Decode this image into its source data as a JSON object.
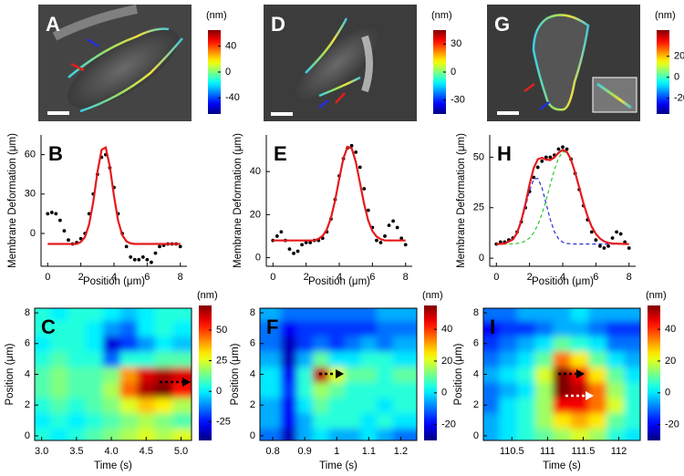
{
  "chart_data": [
    {
      "type": "image",
      "label": "A",
      "colorbar_label": "(nm)",
      "clim": [
        -65,
        65
      ],
      "cticks": [
        -40,
        0,
        40
      ]
    },
    {
      "type": "image",
      "label": "D",
      "colorbar_label": "(nm)",
      "clim": [
        -45,
        45
      ],
      "cticks": [
        -30,
        0,
        30
      ]
    },
    {
      "type": "image",
      "label": "G",
      "colorbar_label": "(nm)",
      "clim": [
        -35,
        45
      ],
      "cticks": [
        -20,
        0,
        20
      ]
    },
    {
      "type": "scatter",
      "label": "B",
      "xlabel": "Position (μm)",
      "ylabel": "Membrane Deformation (μm)",
      "xlim": [
        -0.4,
        8.4
      ],
      "xticks": [
        0,
        2,
        4,
        6,
        8
      ],
      "ylim": [
        -25,
        75
      ],
      "yticks": [
        0,
        30,
        60
      ],
      "series": [
        {
          "style": "markers",
          "color": "#000000",
          "x": [
            0,
            0.25,
            0.5,
            0.75,
            1,
            1.25,
            1.5,
            1.75,
            2,
            2.25,
            2.5,
            2.75,
            3,
            3.25,
            3.5,
            3.75,
            4,
            4.25,
            4.5,
            4.75,
            5,
            5.25,
            5.5,
            5.75,
            6,
            6.25,
            6.5,
            6.75,
            7,
            7.25,
            7.5,
            7.75,
            8
          ],
          "values": [
            15,
            16,
            15,
            10,
            2,
            -5,
            -8,
            -7,
            -4,
            0,
            15,
            30,
            45,
            58,
            60,
            50,
            35,
            15,
            0,
            -10,
            -18,
            -20,
            -20,
            -18,
            -20,
            -22,
            -15,
            -10,
            -9,
            -8,
            -8,
            -8,
            -10
          ]
        },
        {
          "style": "line",
          "color": "#e41a1c",
          "x": [
            0,
            0.25,
            0.5,
            0.75,
            1,
            1.25,
            1.5,
            1.75,
            2,
            2.25,
            2.5,
            2.75,
            3,
            3.25,
            3.5,
            3.75,
            4,
            4.25,
            4.5,
            4.75,
            5,
            5.25,
            5.5,
            5.75,
            6,
            6.25,
            6.5,
            6.75,
            7,
            7.25,
            7.5,
            7.75,
            8
          ],
          "values": [
            -8,
            -8,
            -8,
            -8,
            -8,
            -8,
            -8,
            -8,
            -6.5,
            -2.7,
            6.9,
            24.2,
            46.5,
            63.7,
            65.5,
            50.7,
            28.5,
            9.7,
            -1.3,
            -6,
            -7.6,
            -8,
            -8,
            -8,
            -8,
            -8,
            -8,
            -8,
            -8,
            -8,
            -8,
            -8,
            -8
          ]
        }
      ]
    },
    {
      "type": "scatter",
      "label": "E",
      "xlabel": "Position (μm)",
      "ylabel": "Membrane Deformation (μm)",
      "xlim": [
        -0.4,
        8.4
      ],
      "xticks": [
        0,
        2,
        4,
        6,
        8
      ],
      "ylim": [
        -4,
        57
      ],
      "yticks": [
        0,
        20,
        40
      ],
      "series": [
        {
          "style": "markers",
          "color": "#000000",
          "x": [
            0,
            0.25,
            0.5,
            0.75,
            1,
            1.25,
            1.5,
            1.75,
            2,
            2.25,
            2.5,
            2.75,
            3,
            3.25,
            3.5,
            3.75,
            4,
            4.25,
            4.5,
            4.75,
            5,
            5.25,
            5.5,
            5.75,
            6,
            6.25,
            6.5,
            6.75,
            7,
            7.25,
            7.5,
            7.75,
            8
          ],
          "values": [
            8,
            10,
            12,
            8,
            4,
            2,
            3,
            6,
            7,
            7,
            8,
            8,
            9,
            12,
            18,
            27,
            38,
            46,
            51,
            52,
            49,
            42,
            32,
            22,
            14,
            8,
            7,
            10,
            15,
            17,
            14,
            9,
            6
          ]
        },
        {
          "style": "line",
          "color": "#e41a1c",
          "x": [
            0,
            0.25,
            0.5,
            0.75,
            1,
            1.25,
            1.5,
            1.75,
            2,
            2.25,
            2.5,
            2.75,
            3,
            3.25,
            3.5,
            3.75,
            4,
            4.25,
            4.5,
            4.75,
            5,
            5.25,
            5.5,
            5.75,
            6,
            6.25,
            6.5,
            6.75,
            7,
            7.25,
            7.5,
            7.75,
            8
          ],
          "values": [
            8,
            8,
            8,
            8,
            8,
            8,
            8,
            8,
            8,
            8,
            8,
            8.8,
            10.1,
            13.1,
            18.5,
            26.7,
            36.7,
            46.1,
            51.5,
            50.8,
            44.4,
            34.7,
            24.9,
            17.2,
            12.3,
            9.8,
            8.6,
            8,
            8,
            8,
            8,
            8,
            8
          ]
        }
      ]
    },
    {
      "type": "scatter",
      "label": "H",
      "xlabel": "Position (μm)",
      "ylabel": "Membrane Deformation (μm)",
      "xlim": [
        -0.4,
        8.4
      ],
      "xticks": [
        0,
        2,
        4,
        6,
        8
      ],
      "ylim": [
        -4,
        61
      ],
      "yticks": [
        0,
        25,
        50
      ],
      "series": [
        {
          "style": "markers",
          "color": "#000000",
          "x": [
            0,
            0.25,
            0.5,
            0.75,
            1,
            1.25,
            1.5,
            1.75,
            2,
            2.25,
            2.5,
            2.75,
            3,
            3.25,
            3.5,
            3.75,
            4,
            4.25,
            4.5,
            4.75,
            5,
            5.25,
            5.5,
            5.75,
            6,
            6.25,
            6.5,
            6.75,
            7,
            7.25,
            7.5,
            7.75,
            8
          ],
          "values": [
            7,
            8,
            8,
            9,
            10,
            13,
            18,
            25,
            33,
            40,
            45,
            48,
            50,
            50,
            51,
            54,
            55,
            54,
            49,
            42,
            34,
            26,
            19,
            13,
            9,
            6,
            5,
            6,
            10,
            13,
            12,
            8,
            5
          ]
        },
        {
          "style": "dashed",
          "color": "#2a2ad8",
          "x": [
            0,
            0.5,
            1,
            1.25,
            1.5,
            1.75,
            2,
            2.25,
            2.5,
            2.75,
            3,
            3.25,
            3.5,
            3.75,
            4,
            4.25,
            4.5,
            4.75,
            5,
            5.25,
            5.5,
            5.75,
            6,
            6.25,
            6.5,
            6.75,
            7,
            7.5,
            8
          ],
          "values": [
            7,
            7.2,
            9.2,
            12.2,
            17.7,
            25.3,
            33.4,
            39,
            39.5,
            34.8,
            27,
            19.1,
            13.1,
            9.6,
            7.9,
            7.3,
            7.1,
            7,
            7,
            7,
            7,
            7,
            7,
            7,
            7,
            7,
            7,
            7,
            7
          ]
        },
        {
          "style": "dashed",
          "color": "#2ec82e",
          "x": [
            0,
            0.5,
            1,
            1.25,
            1.5,
            1.75,
            2,
            2.25,
            2.5,
            2.75,
            3,
            3.25,
            3.5,
            3.75,
            4,
            4.25,
            4.5,
            4.75,
            5,
            5.25,
            5.5,
            5.75,
            6,
            6.25,
            6.5,
            6.75,
            7,
            7.5,
            8
          ],
          "values": [
            7,
            7,
            7.1,
            7.3,
            7.7,
            8.5,
            10,
            12.6,
            16.5,
            21.9,
            28.8,
            36.5,
            43.8,
            49.6,
            52.7,
            52.4,
            48.7,
            42.4,
            34.9,
            27.3,
            20.7,
            15.6,
            12,
            9.7,
            8.3,
            7.6,
            7.3,
            7.1,
            7
          ]
        },
        {
          "style": "line",
          "color": "#e41a1c",
          "x": [
            0,
            0.5,
            1,
            1.25,
            1.5,
            1.75,
            2,
            2.25,
            2.5,
            2.75,
            3,
            3.25,
            3.5,
            3.75,
            4,
            4.25,
            4.5,
            4.75,
            5,
            5.25,
            5.5,
            5.75,
            6,
            6.25,
            6.5,
            6.75,
            7,
            7.5,
            8
          ],
          "values": [
            7,
            7.2,
            9.3,
            12.5,
            18.4,
            26.8,
            36.4,
            44.6,
            49,
            49.7,
            48.8,
            48.6,
            49.9,
            52.2,
            53.6,
            52.7,
            48.8,
            42.4,
            34.9,
            27.3,
            20.7,
            15.6,
            12,
            9.7,
            8.3,
            7.6,
            7.3,
            7.1,
            7
          ]
        }
      ]
    },
    {
      "type": "heatmap",
      "label": "C",
      "xlabel": "Time (s)",
      "ylabel": "Position (μm)",
      "colorbar_label": "(nm)",
      "xlim": [
        2.9,
        5.15
      ],
      "xticks": [
        {
          "value": 3.0,
          "label": "3.0"
        },
        3.5,
        {
          "value": 4.0,
          "label": "4.0"
        },
        4.5,
        {
          "value": 5.0,
          "label": "5.0"
        }
      ],
      "ylim": [
        -0.3,
        8.3
      ],
      "yticks": [
        0,
        2,
        4,
        6,
        8
      ],
      "clim": [
        -40,
        70
      ],
      "cticks": [
        -25,
        0,
        25,
        50
      ],
      "x": [
        3.0,
        3.25,
        3.5,
        3.75,
        4.0,
        4.25,
        4.5,
        4.75,
        5.0
      ],
      "y": [
        0,
        1,
        2,
        3,
        4,
        5,
        6,
        7,
        8
      ],
      "z": [
        [
          5,
          0,
          5,
          10,
          15,
          20,
          25,
          20,
          25
        ],
        [
          0,
          5,
          0,
          5,
          10,
          15,
          20,
          15,
          10
        ],
        [
          5,
          10,
          5,
          10,
          15,
          25,
          35,
          30,
          20
        ],
        [
          10,
          15,
          10,
          10,
          20,
          45,
          65,
          70,
          55
        ],
        [
          10,
          15,
          10,
          10,
          15,
          40,
          60,
          65,
          60
        ],
        [
          5,
          10,
          5,
          5,
          -15,
          5,
          5,
          10,
          10
        ],
        [
          0,
          5,
          5,
          0,
          -30,
          -20,
          -10,
          0,
          -5
        ],
        [
          5,
          5,
          5,
          0,
          -10,
          -15,
          0,
          5,
          0
        ],
        [
          5,
          0,
          5,
          5,
          0,
          -5,
          0,
          5,
          5
        ]
      ]
    },
    {
      "type": "heatmap",
      "label": "F",
      "xlabel": "Time (s)",
      "ylabel": "Position (μm)",
      "colorbar_label": "(nm)",
      "xlim": [
        0.76,
        1.25
      ],
      "xticks": [
        0.8,
        0.9,
        1,
        1.1,
        1.2
      ],
      "ylim": [
        -0.3,
        8.3
      ],
      "yticks": [
        0,
        2,
        4,
        6,
        8
      ],
      "clim": [
        -30,
        55
      ],
      "cticks": [
        -20,
        0,
        20,
        40
      ],
      "x": [
        0.8,
        0.85,
        0.9,
        0.95,
        1.0,
        1.05,
        1.1,
        1.15,
        1.2
      ],
      "y": [
        0,
        1,
        2,
        3,
        4,
        5,
        6,
        7,
        8
      ],
      "z": [
        [
          -10,
          -25,
          -5,
          0,
          -5,
          -5,
          0,
          -5,
          -10
        ],
        [
          -5,
          -20,
          -5,
          5,
          5,
          5,
          0,
          5,
          0
        ],
        [
          -5,
          -20,
          0,
          10,
          5,
          5,
          5,
          0,
          5
        ],
        [
          0,
          -15,
          5,
          15,
          10,
          5,
          5,
          5,
          5
        ],
        [
          0,
          -20,
          5,
          50,
          20,
          10,
          10,
          5,
          10
        ],
        [
          -5,
          -25,
          -5,
          10,
          0,
          0,
          5,
          5,
          0
        ],
        [
          -10,
          -25,
          -15,
          -10,
          -15,
          -10,
          -5,
          -10,
          -5
        ],
        [
          -10,
          -20,
          -15,
          -15,
          -15,
          -15,
          -15,
          -10,
          -10
        ],
        [
          -5,
          -10,
          -10,
          -10,
          -10,
          -10,
          -10,
          -5,
          -5
        ]
      ]
    },
    {
      "type": "heatmap",
      "label": "I",
      "xlabel": "Time (s)",
      "ylabel": "Position (μm)",
      "colorbar_label": "(nm)",
      "xlim": [
        110.1,
        112.3
      ],
      "xticks": [
        110.5,
        111,
        111.5,
        112
      ],
      "ylim": [
        -0.3,
        8.3
      ],
      "yticks": [
        0,
        2,
        4,
        6,
        8
      ],
      "clim": [
        -30,
        55
      ],
      "cticks": [
        -20,
        0,
        20,
        40
      ],
      "x": [
        110.2,
        110.45,
        110.7,
        110.95,
        111.2,
        111.45,
        111.7,
        111.95,
        112.2
      ],
      "y": [
        0,
        1,
        2,
        3,
        4,
        5,
        6,
        7,
        8
      ],
      "z": [
        [
          -5,
          0,
          5,
          10,
          15,
          20,
          15,
          5,
          0
        ],
        [
          -5,
          0,
          5,
          15,
          25,
          30,
          25,
          10,
          5
        ],
        [
          -10,
          0,
          5,
          15,
          45,
          45,
          35,
          20,
          5
        ],
        [
          -10,
          -5,
          0,
          15,
          55,
          50,
          35,
          15,
          5
        ],
        [
          -5,
          0,
          5,
          20,
          55,
          45,
          25,
          10,
          0
        ],
        [
          -10,
          -5,
          0,
          10,
          35,
          25,
          10,
          0,
          -5
        ],
        [
          -15,
          -10,
          -5,
          0,
          10,
          5,
          0,
          -10,
          -10
        ],
        [
          -20,
          -15,
          -15,
          -10,
          -5,
          -5,
          -10,
          -15,
          -15
        ],
        [
          -10,
          -10,
          -5,
          -5,
          -5,
          0,
          -5,
          -5,
          -5
        ]
      ]
    }
  ]
}
